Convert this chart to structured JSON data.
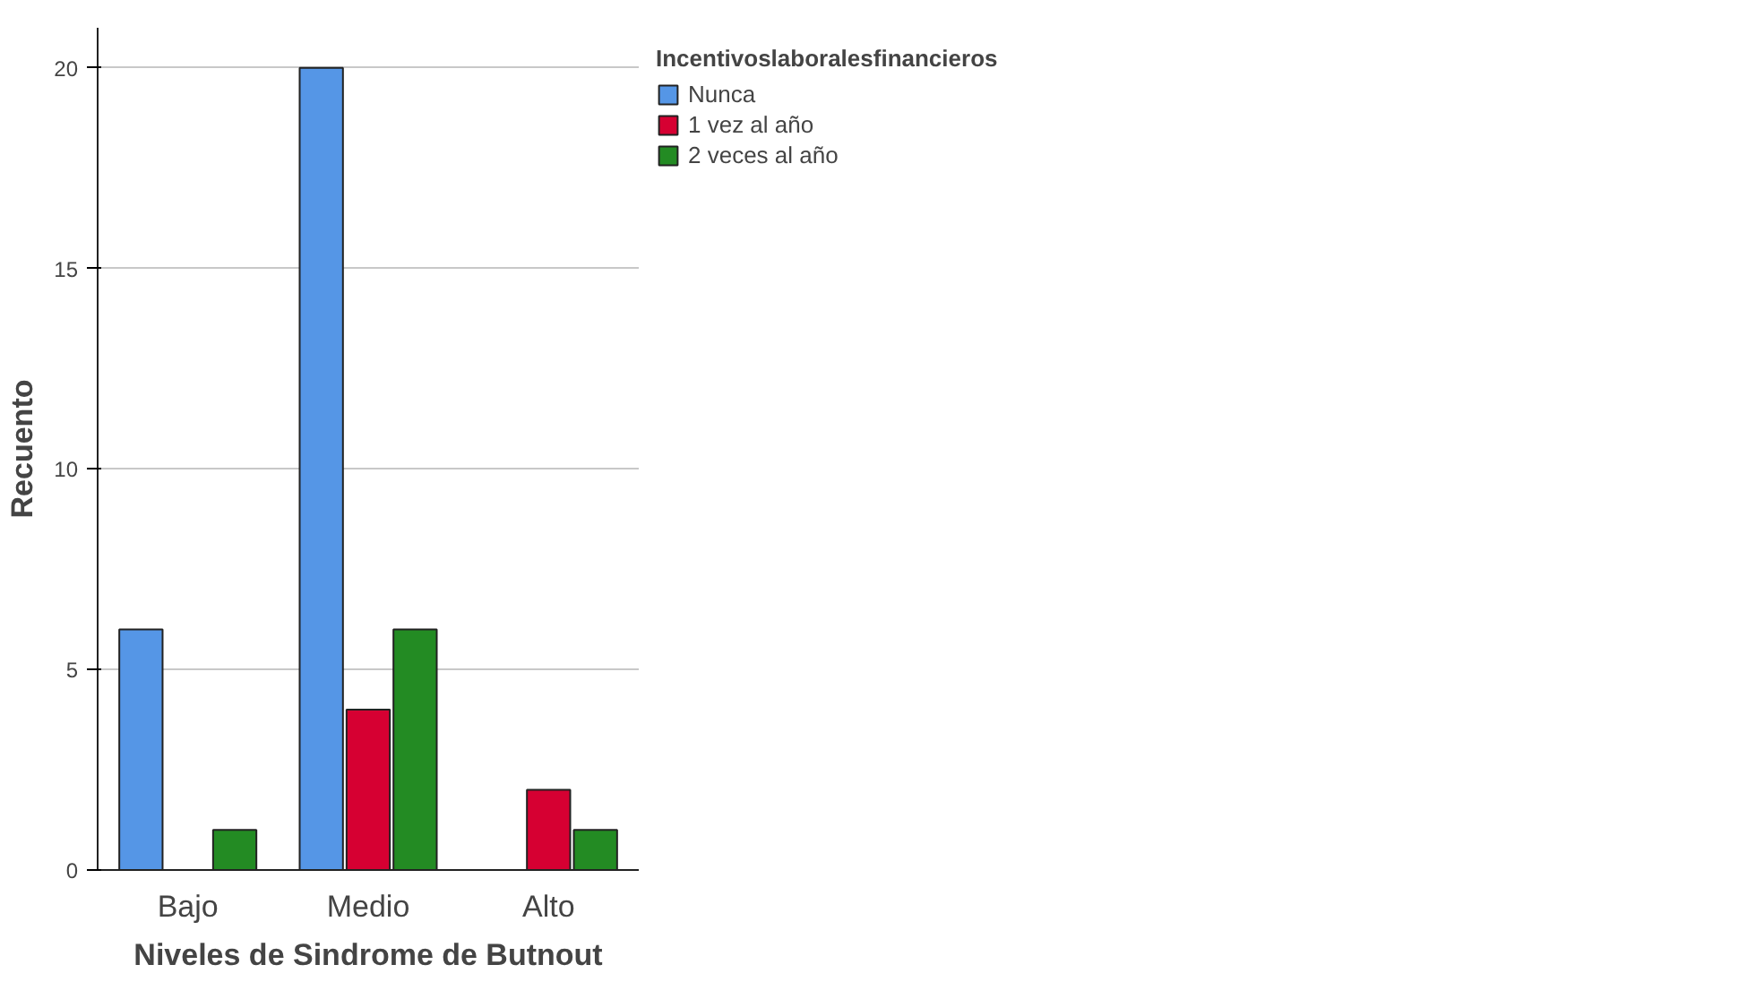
{
  "chart_data": {
    "type": "bar",
    "xlabel": "Niveles de Sindrome de Butnout",
    "ylabel": "Recuento",
    "legend_title": "Incentivoslaboralesfinancieros",
    "categories": [
      "Bajo",
      "Medio",
      "Alto"
    ],
    "series": [
      {
        "name": "Nunca",
        "color": "#5596e6",
        "values": [
          6,
          20,
          null
        ]
      },
      {
        "name": "1 vez al año",
        "color": "#d60032",
        "values": [
          null,
          4,
          2
        ]
      },
      {
        "name": "2 veces al año",
        "color": "#238b23",
        "values": [
          1,
          6,
          1
        ]
      }
    ],
    "ylim": [
      0,
      21
    ],
    "yticks": [
      0,
      5,
      10,
      15,
      20
    ],
    "grid": "y",
    "legend": "top right"
  }
}
